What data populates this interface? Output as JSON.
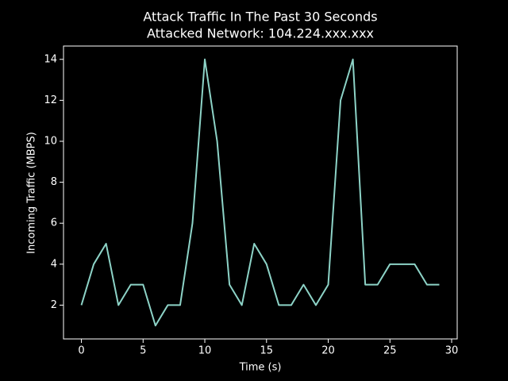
{
  "chart_data": {
    "type": "line",
    "title": "Attack Traffic In The Past 30 Seconds",
    "subtitle": "Attacked Network: 104.224.xxx.xxx",
    "x_label": "Time (s)",
    "y_label": "Incoming Traffic (MBPS)",
    "x": [
      0,
      1,
      2,
      3,
      4,
      5,
      6,
      7,
      8,
      9,
      10,
      11,
      12,
      13,
      14,
      15,
      16,
      17,
      18,
      19,
      20,
      21,
      22,
      23,
      24,
      25,
      26,
      27,
      28,
      29
    ],
    "values": [
      2,
      4,
      5,
      2,
      3,
      3,
      1,
      2,
      2,
      6,
      14,
      10,
      3,
      2,
      5,
      4,
      2,
      2,
      3,
      2,
      3,
      12,
      14,
      3,
      3,
      4,
      4,
      4,
      3,
      3
    ],
    "color": "#8dd3c7",
    "xlim": [
      -1.45,
      30.45
    ],
    "xticks": [
      0,
      5,
      10,
      15,
      20,
      25,
      30
    ],
    "ylim": [
      0.35,
      14.65
    ],
    "yticks": [
      2,
      4,
      6,
      8,
      10,
      12,
      14
    ],
    "grid": false
  }
}
